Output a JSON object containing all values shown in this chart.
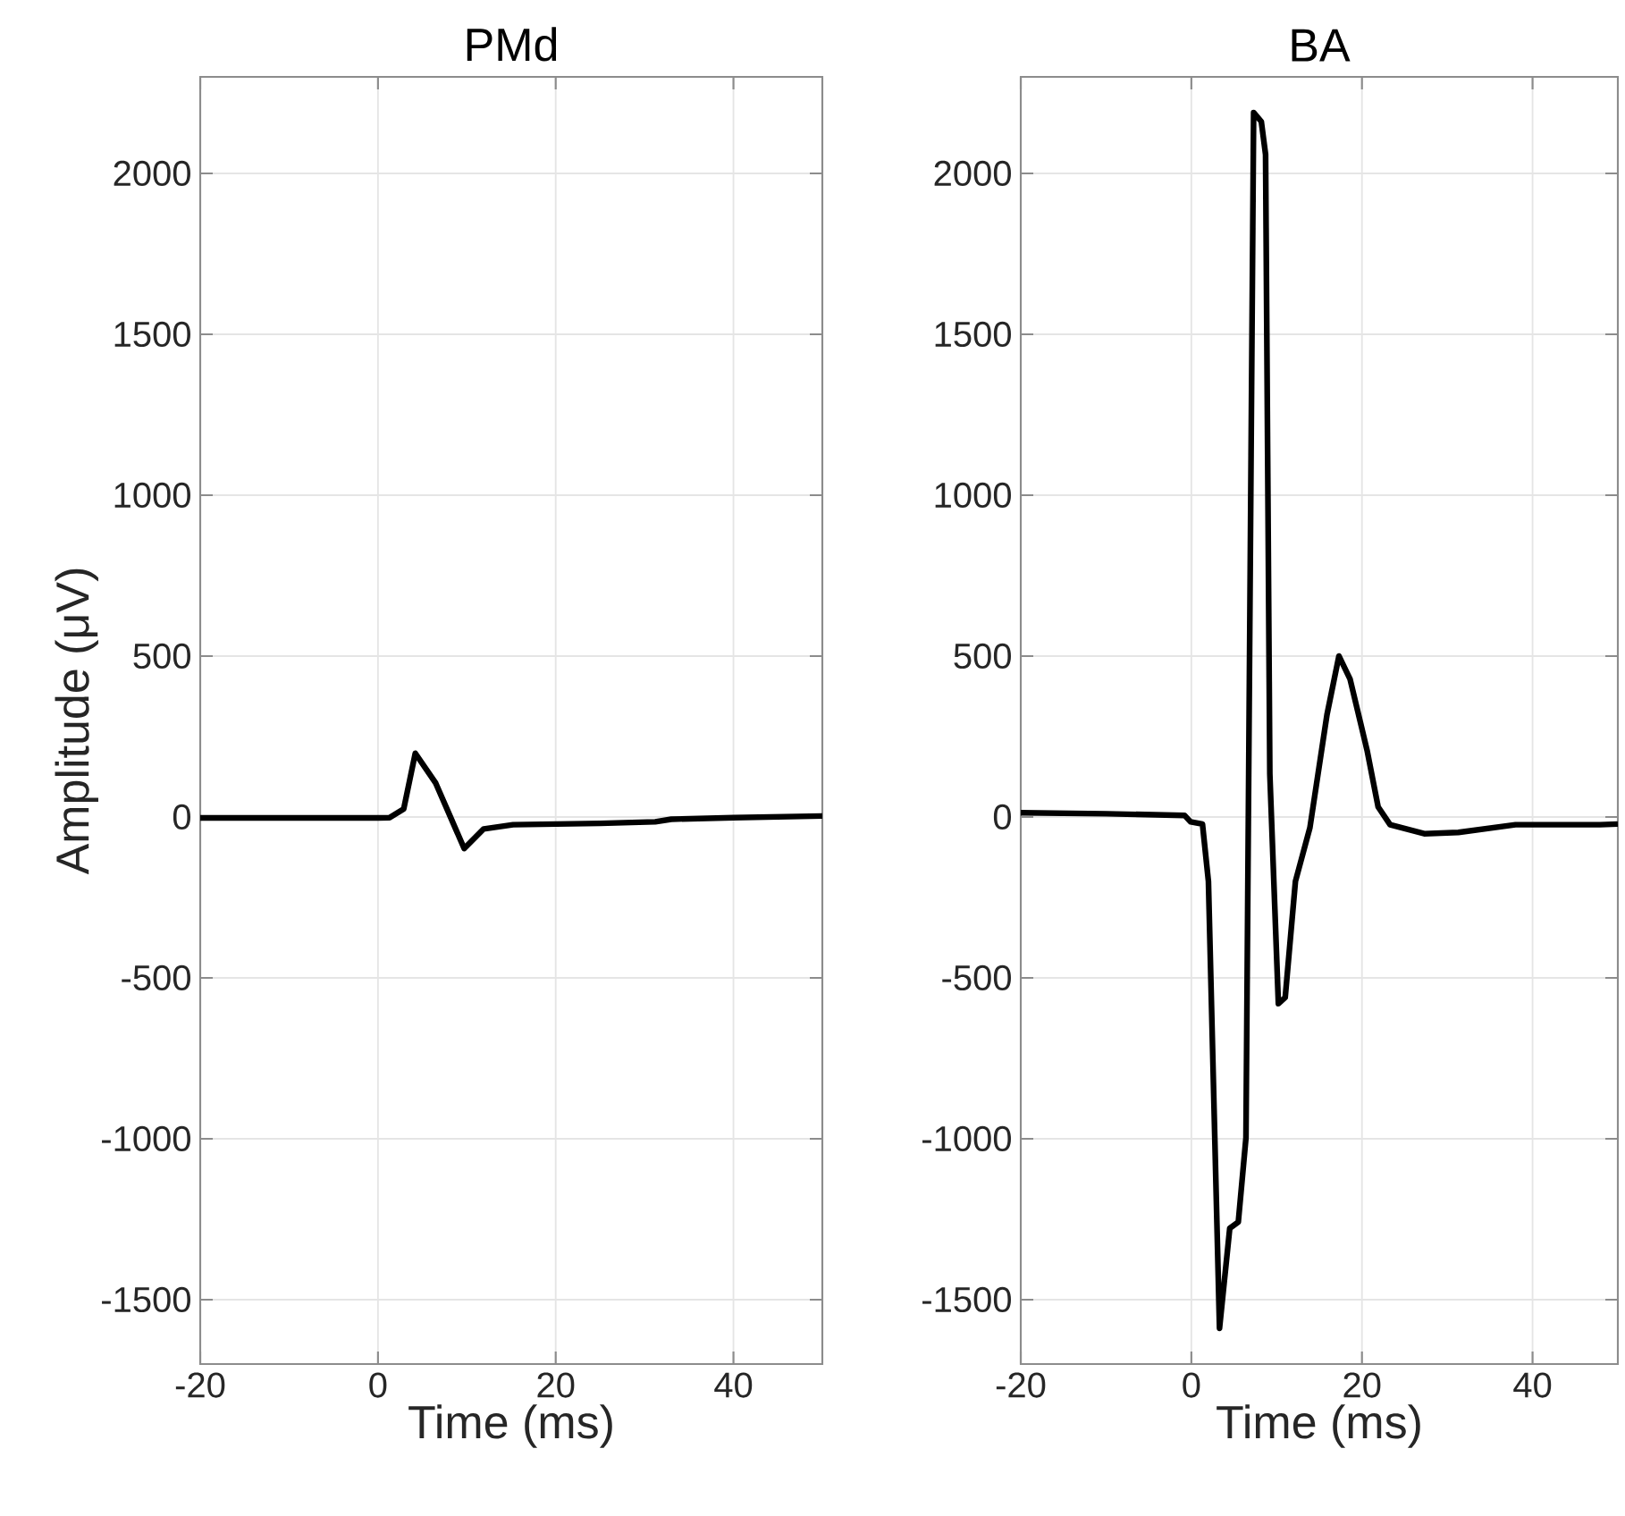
{
  "chart_data": [
    {
      "type": "line",
      "title": "PMd",
      "xlabel": "Time (ms)",
      "ylabel": "Amplitude (μV)",
      "xlim": [
        -20,
        50
      ],
      "ylim": [
        -1700,
        2300
      ],
      "xticks": [
        -20,
        0,
        20,
        40
      ],
      "yticks": [
        -1500,
        -1000,
        -500,
        0,
        500,
        1000,
        1500,
        2000
      ],
      "grid": true,
      "series": [
        {
          "color": "#000000",
          "x": [
            -20,
            -10,
            0,
            1.3,
            2.9,
            4.2,
            6.5,
            9.7,
            11.9,
            15.2,
            25,
            31.2,
            33,
            40,
            50
          ],
          "values": [
            -3,
            -3,
            -3,
            -2,
            25,
            198,
            105,
            -98,
            -37,
            -24,
            -20,
            -15,
            -7,
            -2,
            3
          ]
        }
      ]
    },
    {
      "type": "line",
      "title": "BA",
      "xlabel": "Time (ms)",
      "xlim": [
        -20,
        50
      ],
      "ylim": [
        -1700,
        2300
      ],
      "xticks": [
        -20,
        0,
        20,
        40
      ],
      "yticks": [
        -1500,
        -1000,
        -500,
        0,
        500,
        1000,
        1500,
        2000
      ],
      "grid": true,
      "series": [
        {
          "color": "#000000",
          "x": [
            -20,
            -10,
            -0.8,
            -0.1,
            1.3,
            2.0,
            3.3,
            4.5,
            5.5,
            6.4,
            7.3,
            8.2,
            8.7,
            9.2,
            10.2,
            11,
            12.2,
            13.9,
            15.9,
            17.3,
            18.6,
            20.6,
            21.9,
            23.3,
            27.3,
            31.3,
            38,
            47.9,
            50
          ],
          "values": [
            13,
            10,
            5,
            -15,
            -22,
            -200,
            -1589,
            -1278,
            -1259,
            -997,
            2189,
            2161,
            2059,
            133,
            -580,
            -561,
            -200,
            -33,
            318,
            500,
            429,
            207,
            31,
            -24,
            -52,
            -48,
            -24,
            -24,
            -22
          ]
        }
      ]
    }
  ]
}
